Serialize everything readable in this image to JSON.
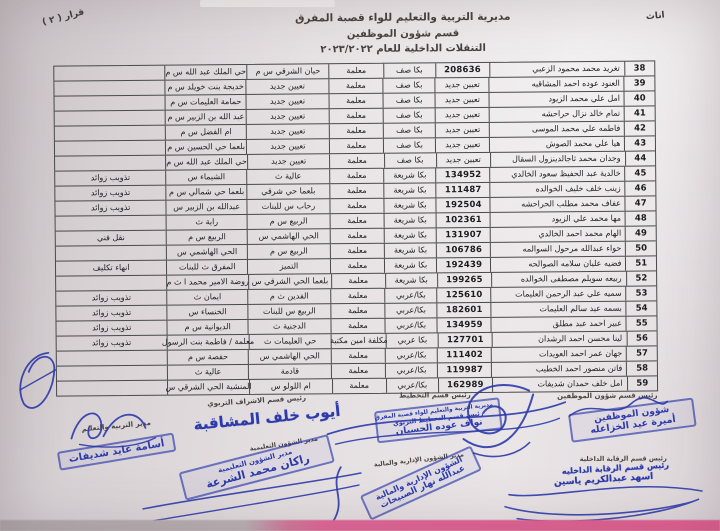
{
  "document": {
    "corner_note": "قرار ( ٢ )",
    "side_note": "اناث",
    "header": {
      "line1": "مديرية التربية والتعليم للواء قصبة المفرق",
      "line2": "قسم شؤون الموظفين",
      "line3": "التنقلات الداخلية للعام ٢٠٢٣/٢٠٢٢"
    }
  },
  "table": {
    "rows": [
      {
        "no": "38",
        "name": "تغريد محمد محمود الزعبي",
        "number": "208636",
        "qualification": "بكا صف",
        "job": "معلمة",
        "from_school": "حيان الشرقي س م",
        "to_school": "حي الملك عبد الله س م",
        "note": ""
      },
      {
        "no": "39",
        "name": "العنود عوده احمد المشاقبه",
        "number": "تعيين جديد",
        "qualification": "بكا صف",
        "job": "معلمة",
        "from_school": "تعيين جديد",
        "to_school": "خديجة بنت خويلد س م",
        "note": ""
      },
      {
        "no": "40",
        "name": "امل علي محمد الزيود",
        "number": "تعيين جديد",
        "qualification": "بكا صف",
        "job": "معلمة",
        "from_school": "تعيين جديد",
        "to_school": "حمامة العليمات س م",
        "note": ""
      },
      {
        "no": "41",
        "name": "تمام خالد نزال حراحشه",
        "number": "تعيين جديد",
        "qualification": "بكا صف",
        "job": "معلمة",
        "from_school": "تعيين جديد",
        "to_school": "عبد الله بن الزبير س م",
        "note": ""
      },
      {
        "no": "42",
        "name": "فاطمه علي محمد الموسى",
        "number": "تعيين جديد",
        "qualification": "بكا صف",
        "job": "معلمة",
        "from_school": "تعيين جديد",
        "to_school": "ام الفضل س م",
        "note": ""
      },
      {
        "no": "43",
        "name": "هيا علي محمد الصوش",
        "number": "تعيين جديد",
        "qualification": "بكا صف",
        "job": "معلمة",
        "from_school": "تعيين جديد",
        "to_school": "بلعما حي الحسين س م",
        "note": ""
      },
      {
        "no": "44",
        "name": "وجدان محمد ثاجالدينزول السقال",
        "number": "تعيين جديد",
        "qualification": "بكا صف",
        "job": "معلمة",
        "from_school": "تعيين جديد",
        "to_school": "حي الملك عبد الله س م",
        "note": ""
      },
      {
        "no": "45",
        "name": "خالدية عبد الحفيظ سعود الخالدي",
        "number": "134952",
        "qualification": "بكا شريعة",
        "job": "معلمة",
        "from_school": "عالية ث",
        "to_school": "الشيماء س",
        "note": "تذويب زوائد"
      },
      {
        "no": "46",
        "name": "زينب خلف خليف الخوالده",
        "number": "111487",
        "qualification": "بكا شريعة",
        "job": "معلمة",
        "from_school": "بلعما حي شرقي",
        "to_school": "بلعما حي شمالي س م",
        "note": "تذويب زوائد"
      },
      {
        "no": "47",
        "name": "عفاف محمد مطلب الحراحشه",
        "number": "192504",
        "qualification": "بكا شريعة",
        "job": "معلمة",
        "from_school": "رحاب س للبنات",
        "to_school": "عبدالله بن الزبير س",
        "note": "تذويب زوائد"
      },
      {
        "no": "48",
        "name": "مها محمد علي الزيود",
        "number": "102361",
        "qualification": "بكا شريعة",
        "job": "معلمة",
        "from_school": "الربيع س م",
        "to_school": "راية ث",
        "note": ""
      },
      {
        "no": "49",
        "name": "الهام محمد احمد الخالدي",
        "number": "131907",
        "qualification": "بكا شريعة",
        "job": "معلمة",
        "from_school": "الحي الهاشمي س",
        "to_school": "الربيع س م",
        "note": "نقل فني"
      },
      {
        "no": "50",
        "name": "حواء عبدالله مرحول السوالمه",
        "number": "106786",
        "qualification": "بكا شريعة",
        "job": "معلمة",
        "from_school": "الربيع س م",
        "to_school": "الحي الهاشمي س",
        "note": ""
      },
      {
        "no": "51",
        "name": "فضيه عليان سلامه الصوالحه",
        "number": "192439",
        "qualification": "بكا شريعة",
        "job": "معلمة",
        "from_school": "التميز",
        "to_school": "المفرق ث للبنات",
        "note": "انهاء تكليف"
      },
      {
        "no": "52",
        "name": "ربيعه سويلم مصطفى الخوالده",
        "number": "199265",
        "qualification": "بكا شريعة",
        "job": "معلمة",
        "from_school": "بلعما الحي الشرقي س",
        "to_school": "روضة الامير محمد ا ث م",
        "note": ""
      },
      {
        "no": "53",
        "name": "سميه علي عبد الرحمن العليمات",
        "number": "125610",
        "qualification": "بكا/عربي",
        "job": "معلمة",
        "from_school": "الفدين ث م",
        "to_school": "ايمان ث",
        "note": "تذويب زوائد"
      },
      {
        "no": "54",
        "name": "بسمه عيد سالم العليمات",
        "number": "182601",
        "qualification": "بكا/عربي",
        "job": "معلمة",
        "from_school": "الربيع س للبنات",
        "to_school": "الخنساء س",
        "note": "تذويب زوائد"
      },
      {
        "no": "55",
        "name": "عبير احمد عبد مطلق",
        "number": "134959",
        "qualification": "بكا/عربي",
        "job": "معلمة",
        "from_school": "الدجنية ث",
        "to_school": "الديوانية س م",
        "note": "تذويب زوائد"
      },
      {
        "no": "56",
        "name": "لينا محسن احمد الرشدان",
        "number": "127701",
        "qualification": "بكا عربي",
        "job": "مكلفة امين مكتبة",
        "from_school": "حي العليمات ث",
        "to_school": "معلمة / فاطمة بنت الرسول",
        "note": "تذويب زوائد"
      },
      {
        "no": "57",
        "name": "جهان عمر احمد العويدات",
        "number": "111402",
        "qualification": "بكا/عربي",
        "job": "معلمة",
        "from_school": "الحي الهاشمي س",
        "to_school": "حفصة س م",
        "note": ""
      },
      {
        "no": "58",
        "name": "فاتن منصور احمد الخطيب",
        "number": "119987",
        "qualification": "بكا/عربي",
        "job": "معلمة",
        "from_school": "قادمة",
        "to_school": "عالية ث",
        "note": ""
      },
      {
        "no": "59",
        "name": "امل خلف حمدان شديفات",
        "number": "162989",
        "qualification": "بكا/عربي",
        "job": "معلمة",
        "from_school": "ام اللولو س",
        "to_school": "المنشية الحي الشرقي س",
        "note": ""
      }
    ]
  },
  "signatures": {
    "personnel": {
      "title": "رئيس قسم شؤون الموظفين",
      "stamp": [
        "شؤون الموظفين",
        "أميرة عيد الخزاعله"
      ]
    },
    "planning": {
      "title": "رئيس قسم التخطيط",
      "stamp": [
        "مديرية التربية والتعليم للواء قصبة المفرق",
        "رئيس قسم التخطيط التربوي",
        "نواف عوده الحسبان"
      ]
    },
    "supervision": {
      "title": "رئيس قسم الاشراف التربوي",
      "name": "أيوب خلف المشاقبة"
    },
    "internal_control": {
      "title": "رئيس قسم الرقابة الداخلية",
      "stamp": [
        "رئيس قسم الرقابة الداخليه",
        "اسهد عبدالكريم ياسين"
      ]
    },
    "admin_financial": {
      "title": "مدير الشؤون الإدارية والمالية",
      "stamp": [
        "الشؤون الإدارية والمالية",
        "عبدالله نهار الصبيحات"
      ]
    },
    "educational_affairs": {
      "title": "مدير الشؤون التعليمية",
      "stamp": [
        "مدير الشؤون التعليمية",
        "راكان محمد الشرعة"
      ]
    },
    "director": {
      "title": "مدير التربية والتعليم",
      "stamp": [
        "أسامة عايد شديفات"
      ]
    }
  },
  "colors": {
    "stamp_blue": "#2c3aab",
    "paper": "#e4dfe1",
    "pink_edge": "#e4679a",
    "table_line": "#4a4a4a",
    "ink": "#1d1d1f"
  }
}
